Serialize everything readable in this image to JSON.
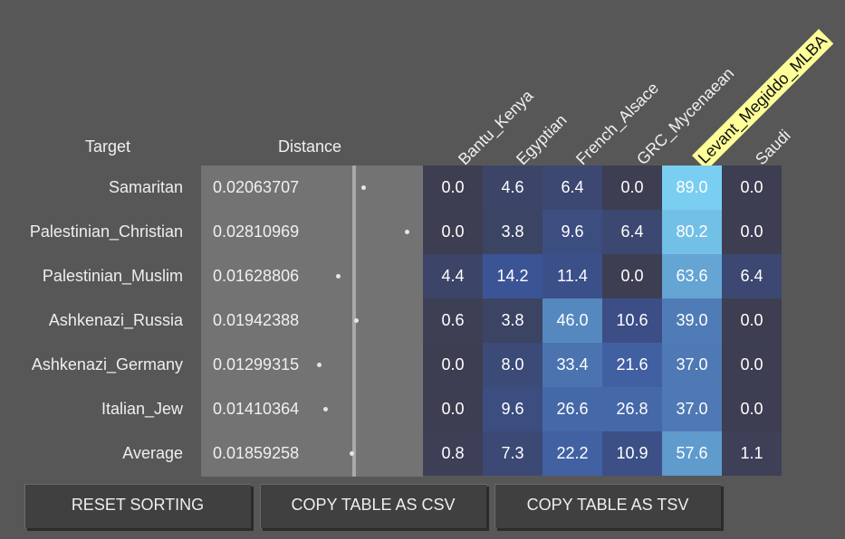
{
  "header": {
    "target": "Target",
    "distance": "Distance"
  },
  "columns": [
    {
      "name": "Bantu_Kenya",
      "highlighted": false
    },
    {
      "name": "Egyptian",
      "highlighted": false
    },
    {
      "name": "French_Alsace",
      "highlighted": false
    },
    {
      "name": "GRC_Mycenaean",
      "highlighted": false
    },
    {
      "name": "Levant_Megiddo_MLBA",
      "highlighted": true
    },
    {
      "name": "Saudi",
      "highlighted": false
    }
  ],
  "rows": [
    {
      "target": "Samaritan",
      "distance": "0.02063707",
      "values": [
        "0.0",
        "4.6",
        "6.4",
        "0.0",
        "89.0",
        "0.0"
      ]
    },
    {
      "target": "Palestinian_Christian",
      "distance": "0.02810969",
      "values": [
        "0.0",
        "3.8",
        "9.6",
        "6.4",
        "80.2",
        "0.0"
      ]
    },
    {
      "target": "Palestinian_Muslim",
      "distance": "0.01628806",
      "values": [
        "4.4",
        "14.2",
        "11.4",
        "0.0",
        "63.6",
        "6.4"
      ]
    },
    {
      "target": "Ashkenazi_Russia",
      "distance": "0.01942388",
      "values": [
        "0.6",
        "3.8",
        "46.0",
        "10.6",
        "39.0",
        "0.0"
      ]
    },
    {
      "target": "Ashkenazi_Germany",
      "distance": "0.01299315",
      "values": [
        "0.0",
        "8.0",
        "33.4",
        "21.6",
        "37.0",
        "0.0"
      ]
    },
    {
      "target": "Italian_Jew",
      "distance": "0.01410364",
      "values": [
        "0.0",
        "9.6",
        "26.6",
        "26.8",
        "37.0",
        "0.0"
      ]
    },
    {
      "target": "Average",
      "distance": "0.01859258",
      "values": [
        "0.8",
        "7.3",
        "22.2",
        "10.9",
        "57.6",
        "1.1"
      ]
    }
  ],
  "buttons": {
    "reset": "RESET SORTING",
    "csv": "COPY TABLE AS CSV",
    "tsv": "COPY TABLE AS TSV"
  },
  "colors": {
    "background": "#575757",
    "distance_panel": "#737373",
    "highlight_header": "#ffff99",
    "heat_low": "#3d3e52",
    "heat_mid": "#3b559a",
    "heat_high": "#7bd0f3"
  }
}
